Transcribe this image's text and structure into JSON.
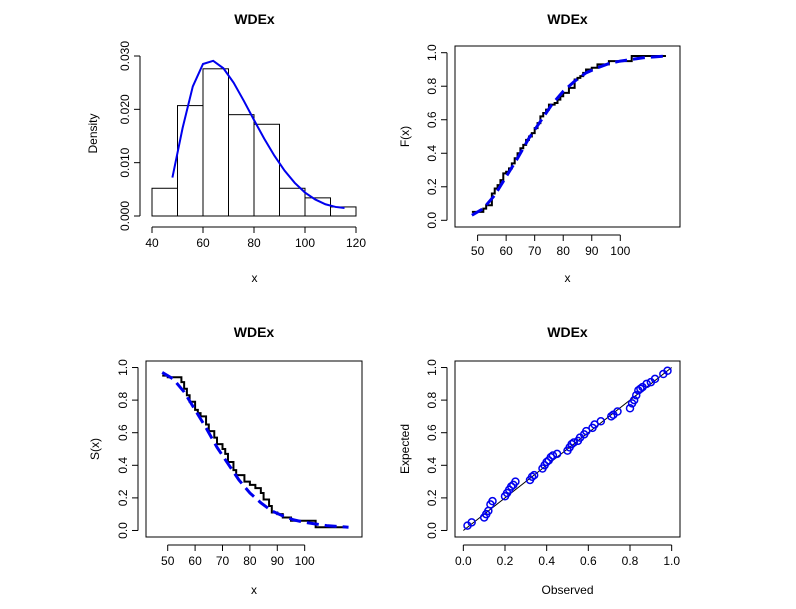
{
  "chart_data": [
    {
      "id": "hist",
      "type": "histogram",
      "title": "WDEx",
      "xlabel": "x",
      "ylabel": "Density",
      "xlim": [
        40,
        120
      ],
      "ylim": [
        0,
        0.03
      ],
      "xticks": [
        40,
        60,
        80,
        100,
        120
      ],
      "yticks": [
        0.0,
        0.01,
        0.02,
        0.03
      ],
      "ytick_labels": [
        "0.000",
        "0.010",
        "0.020",
        "0.030"
      ],
      "bins": [
        {
          "from": 40,
          "to": 50,
          "density": 0.0052
        },
        {
          "from": 50,
          "to": 60,
          "density": 0.0207
        },
        {
          "from": 60,
          "to": 70,
          "density": 0.0276
        },
        {
          "from": 70,
          "to": 80,
          "density": 0.019
        },
        {
          "from": 80,
          "to": 90,
          "density": 0.0172
        },
        {
          "from": 90,
          "to": 100,
          "density": 0.0052
        },
        {
          "from": 100,
          "to": 110,
          "density": 0.0034
        },
        {
          "from": 110,
          "to": 120,
          "density": 0.0017
        }
      ],
      "fitted_density": {
        "color": "#0000ee",
        "x": [
          48,
          52,
          56,
          60,
          64,
          68,
          72,
          76,
          80,
          84,
          88,
          92,
          96,
          100,
          104,
          108,
          112,
          115.5
        ],
        "y": [
          0.0072,
          0.0165,
          0.0243,
          0.0285,
          0.0291,
          0.0277,
          0.025,
          0.0216,
          0.018,
          0.0145,
          0.0113,
          0.0085,
          0.0062,
          0.0044,
          0.0031,
          0.0022,
          0.0017,
          0.0015
        ]
      }
    },
    {
      "id": "cdf",
      "type": "line",
      "title": "WDEx",
      "xlabel": "x",
      "ylabel": "F(x)",
      "xlim": [
        45,
        118
      ],
      "ylim": [
        0,
        1
      ],
      "xticks": [
        50,
        60,
        70,
        80,
        90,
        100
      ],
      "yticks": [
        0.0,
        0.2,
        0.4,
        0.6,
        0.8,
        1.0
      ],
      "ytick_labels": [
        "0.0",
        "0.2",
        "0.4",
        "0.6",
        "0.8",
        "1.0"
      ],
      "empirical_step": {
        "color": "#000000",
        "x": [
          48,
          52,
          53,
          55,
          56,
          57,
          58,
          59,
          60,
          61,
          62,
          63,
          64,
          65,
          66,
          67,
          68,
          69,
          70,
          71,
          72,
          73,
          74,
          75,
          77,
          78,
          79,
          80,
          82,
          84,
          85,
          86,
          87,
          88,
          90,
          92,
          96,
          104,
          116
        ],
        "y": [
          0.05,
          0.07,
          0.09,
          0.16,
          0.19,
          0.21,
          0.24,
          0.28,
          0.29,
          0.31,
          0.34,
          0.37,
          0.4,
          0.43,
          0.45,
          0.48,
          0.5,
          0.52,
          0.55,
          0.58,
          0.62,
          0.64,
          0.66,
          0.69,
          0.7,
          0.72,
          0.74,
          0.76,
          0.79,
          0.84,
          0.85,
          0.86,
          0.88,
          0.9,
          0.91,
          0.93,
          0.95,
          0.98,
          0.98
        ]
      },
      "fitted_cdf": {
        "color": "#0000ee",
        "x": [
          48,
          52,
          56,
          60,
          64,
          68,
          72,
          76,
          80,
          84,
          88,
          92,
          96,
          100,
          104,
          108,
          112,
          116
        ],
        "y": [
          0.03,
          0.07,
          0.15,
          0.26,
          0.37,
          0.49,
          0.59,
          0.69,
          0.77,
          0.83,
          0.88,
          0.91,
          0.935,
          0.95,
          0.96,
          0.97,
          0.975,
          0.98
        ]
      }
    },
    {
      "id": "surv",
      "type": "line",
      "title": "WDEx",
      "xlabel": "x",
      "ylabel": "S(x)",
      "xlim": [
        45,
        118
      ],
      "ylim": [
        0,
        1
      ],
      "xticks": [
        50,
        60,
        70,
        80,
        90,
        100
      ],
      "yticks": [
        0.0,
        0.2,
        0.4,
        0.6,
        0.8,
        1.0
      ],
      "ytick_labels": [
        "0.0",
        "0.2",
        "0.4",
        "0.6",
        "0.8",
        "1.0"
      ],
      "empirical_step": {
        "color": "#000000",
        "x": [
          48,
          50,
          55,
          56,
          57,
          58,
          60,
          61,
          62,
          64,
          65,
          67,
          68,
          70,
          71,
          72,
          74,
          75,
          78,
          80,
          82,
          84,
          85,
          87,
          88,
          90,
          92,
          95,
          104,
          116
        ],
        "y": [
          0.95,
          0.94,
          0.91,
          0.87,
          0.83,
          0.79,
          0.74,
          0.72,
          0.7,
          0.65,
          0.61,
          0.57,
          0.53,
          0.5,
          0.47,
          0.42,
          0.37,
          0.34,
          0.3,
          0.28,
          0.26,
          0.23,
          0.19,
          0.15,
          0.11,
          0.1,
          0.08,
          0.06,
          0.02,
          0.02
        ]
      },
      "fitted_survival": {
        "color": "#0000ee",
        "x": [
          48,
          52,
          56,
          60,
          64,
          68,
          72,
          76,
          80,
          84,
          88,
          92,
          96,
          100,
          104,
          108,
          112,
          116
        ],
        "y": [
          0.97,
          0.93,
          0.85,
          0.74,
          0.63,
          0.51,
          0.41,
          0.31,
          0.23,
          0.17,
          0.12,
          0.09,
          0.065,
          0.05,
          0.04,
          0.03,
          0.025,
          0.02
        ]
      }
    },
    {
      "id": "pp",
      "type": "scatter",
      "title": "WDEx",
      "xlabel": "Observed",
      "ylabel": "Expected",
      "xlim": [
        0,
        1
      ],
      "ylim": [
        0,
        1
      ],
      "xticks": [
        0.0,
        0.2,
        0.4,
        0.6,
        0.8,
        1.0
      ],
      "xtick_labels": [
        "0.0",
        "0.2",
        "0.4",
        "0.6",
        "0.8",
        "1.0"
      ],
      "yticks": [
        0.0,
        0.2,
        0.4,
        0.6,
        0.8,
        1.0
      ],
      "ytick_labels": [
        "0.0",
        "0.2",
        "0.4",
        "0.6",
        "0.8",
        "1.0"
      ],
      "reference_line": {
        "color": "#000000",
        "from": [
          0,
          0
        ],
        "to": [
          1,
          1
        ]
      },
      "points": {
        "color": "#0000ee",
        "x": [
          0.02,
          0.04,
          0.1,
          0.11,
          0.12,
          0.13,
          0.14,
          0.2,
          0.21,
          0.22,
          0.23,
          0.24,
          0.25,
          0.32,
          0.33,
          0.34,
          0.38,
          0.39,
          0.4,
          0.41,
          0.42,
          0.43,
          0.45,
          0.5,
          0.51,
          0.52,
          0.53,
          0.55,
          0.56,
          0.58,
          0.59,
          0.62,
          0.63,
          0.66,
          0.71,
          0.72,
          0.74,
          0.8,
          0.81,
          0.82,
          0.83,
          0.84,
          0.85,
          0.86,
          0.88,
          0.9,
          0.92,
          0.96,
          0.98
        ],
        "y": [
          0.03,
          0.05,
          0.08,
          0.1,
          0.12,
          0.16,
          0.18,
          0.21,
          0.23,
          0.25,
          0.27,
          0.28,
          0.3,
          0.31,
          0.33,
          0.34,
          0.38,
          0.4,
          0.42,
          0.43,
          0.45,
          0.46,
          0.47,
          0.49,
          0.51,
          0.53,
          0.54,
          0.55,
          0.57,
          0.59,
          0.61,
          0.63,
          0.65,
          0.67,
          0.7,
          0.71,
          0.73,
          0.75,
          0.78,
          0.8,
          0.83,
          0.86,
          0.87,
          0.88,
          0.9,
          0.91,
          0.93,
          0.96,
          0.98
        ]
      }
    }
  ]
}
